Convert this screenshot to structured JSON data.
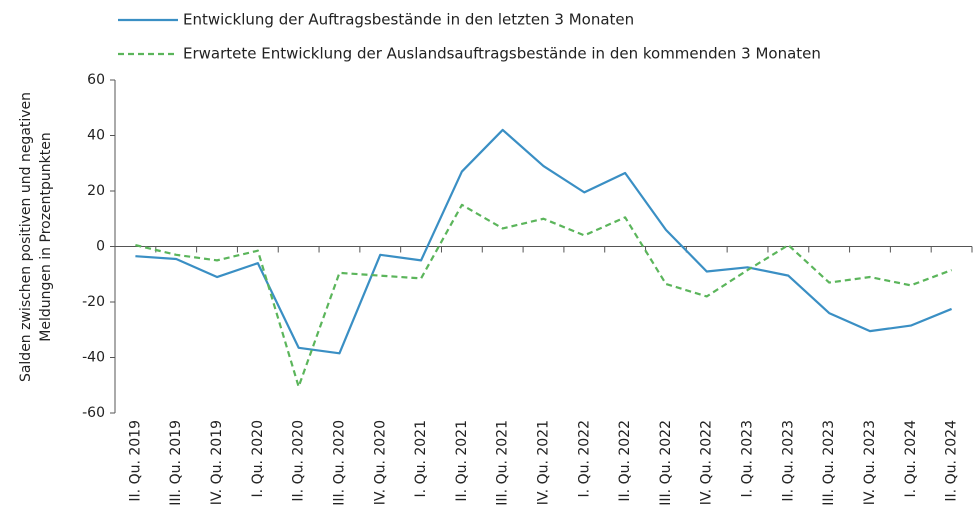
{
  "chart_data": {
    "type": "line",
    "ylabel": [
      "Salden zwischen positiven und negativen",
      "Meldungen  in Prozentpunkten"
    ],
    "categories": [
      "II. Qu. 2019",
      "III. Qu. 2019",
      "IV. Qu. 2019",
      "I. Qu. 2020",
      "II. Qu. 2020",
      "III. Qu. 2020",
      "IV. Qu. 2020",
      "I. Qu. 2021",
      "II. Qu. 2021",
      "III. Qu. 2021",
      "IV. Qu. 2021",
      "I. Qu. 2022",
      "II. Qu. 2022",
      "III. Qu. 2022",
      "IV. Qu. 2022",
      "I. Qu. 2023",
      "II. Qu. 2023",
      "III. Qu. 2023",
      "IV. Qu. 2023",
      "I. Qu. 2024",
      "II. Qu. 2024"
    ],
    "series": [
      {
        "name": "Entwicklung der Auftragsbestände in den letzten 3 Monaten",
        "color": "#3a8fc4",
        "dash": false,
        "values": [
          -3.5,
          -4.5,
          -11,
          -6,
          -36.5,
          -38.5,
          -3,
          -5,
          27,
          42,
          29,
          19.5,
          26.5,
          6,
          -9,
          -7.5,
          -10.5,
          -24,
          -30.5,
          -28.5,
          -22.5
        ]
      },
      {
        "name": "Erwartete Entwicklung der Auslandsauftragsbestände in den kommenden 3 Monaten",
        "color": "#5bb55b",
        "dash": true,
        "values": [
          0.5,
          -3,
          -5,
          -1.5,
          -50.5,
          -9.5,
          -10.5,
          -11.5,
          15,
          6.5,
          10,
          4,
          10.5,
          -13.5,
          -18,
          -8.5,
          0.5,
          -13,
          -11,
          -14,
          -8.5
        ]
      }
    ],
    "ylim": [
      -60,
      60
    ],
    "yticks": [
      -60,
      -40,
      -20,
      0,
      20,
      40,
      60
    ],
    "grid": false
  }
}
